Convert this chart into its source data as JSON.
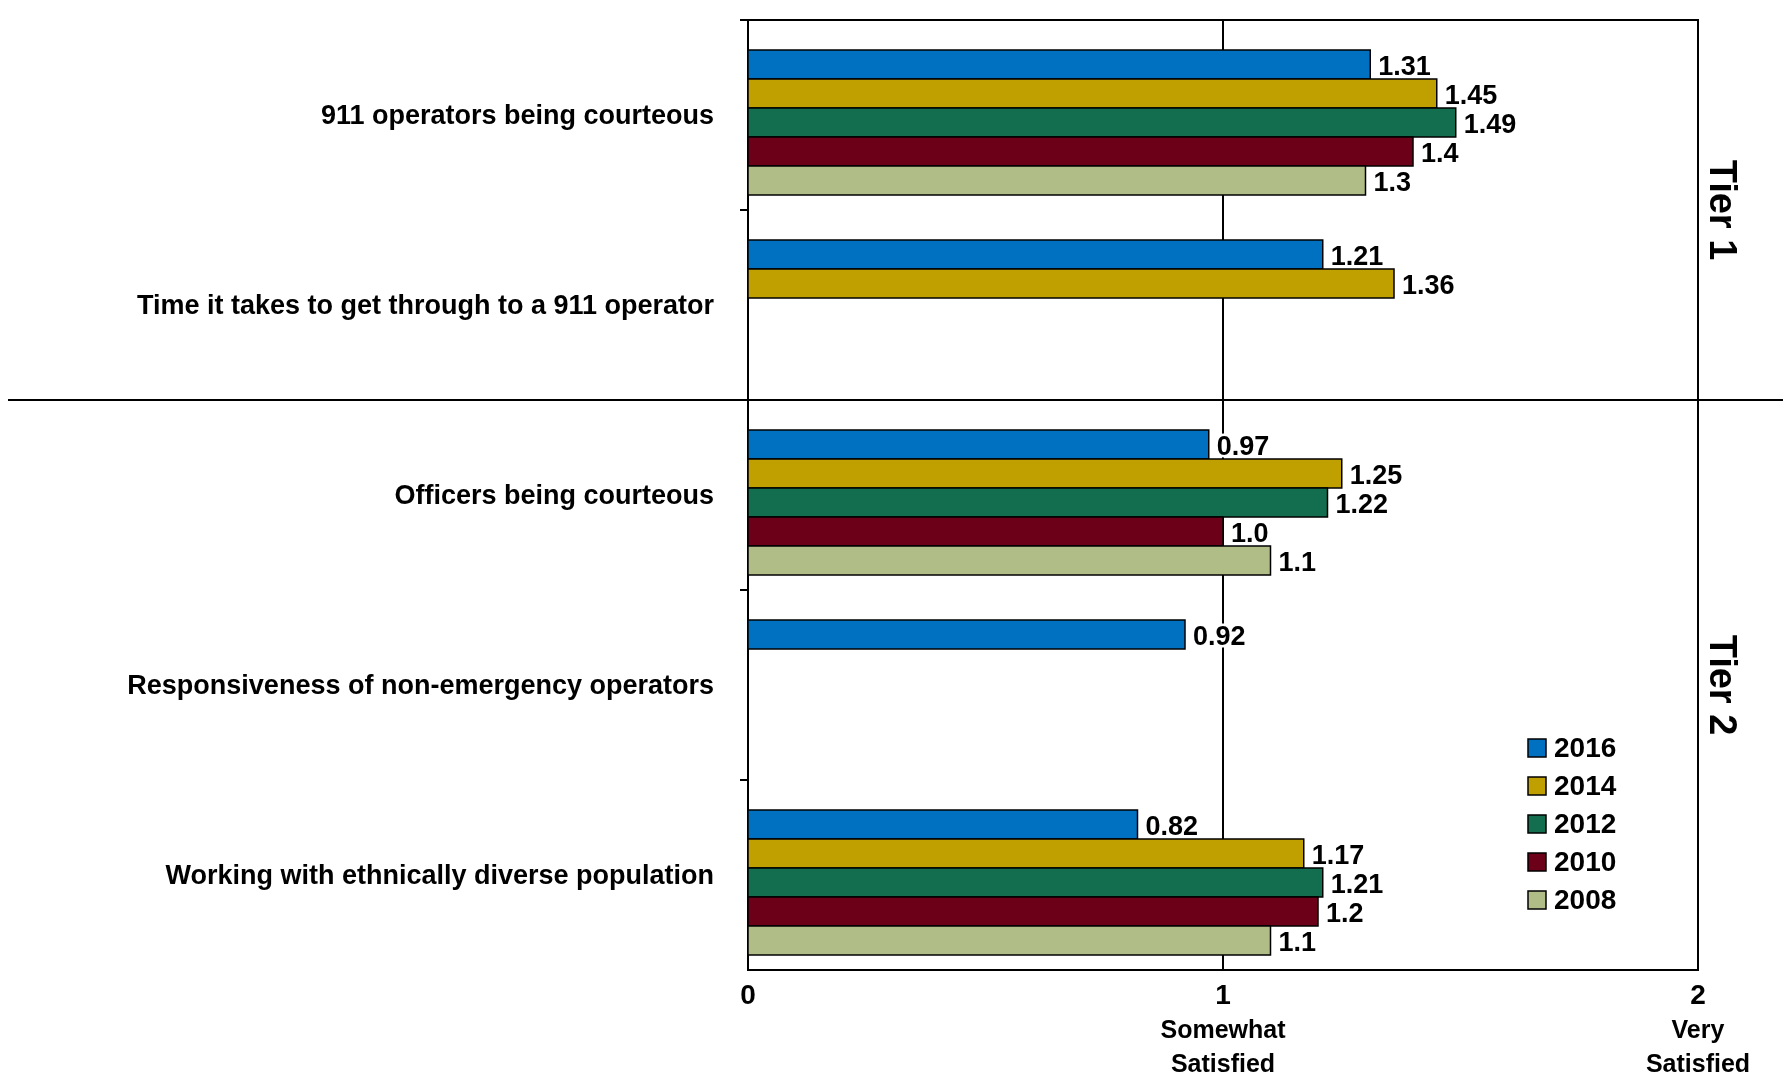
{
  "chart_data": {
    "type": "bar",
    "orientation": "horizontal",
    "categories": [
      "911 operators being courteous",
      "Time it takes to get through to a 911 operator",
      "Officers being courteous",
      "Responsiveness of non-emergency operators",
      "Working with ethnically diverse population"
    ],
    "series": [
      {
        "name": "2016",
        "color": "#0070c0",
        "values": [
          1.31,
          1.21,
          0.97,
          0.92,
          0.82
        ],
        "value_labels": [
          "1.31",
          "1.21",
          "0.97",
          "0.92",
          "0.82"
        ]
      },
      {
        "name": "2014",
        "color": "#c09f00",
        "values": [
          1.45,
          1.36,
          1.25,
          null,
          1.17
        ],
        "value_labels": [
          "1.45",
          "1.36",
          "1.25",
          null,
          "1.17"
        ]
      },
      {
        "name": "2012",
        "color": "#136d4f",
        "values": [
          1.49,
          null,
          1.22,
          null,
          1.21
        ],
        "value_labels": [
          "1.49",
          null,
          "1.22",
          null,
          "1.21"
        ]
      },
      {
        "name": "2010",
        "color": "#6b0018",
        "values": [
          1.4,
          null,
          1.0,
          null,
          1.2
        ],
        "value_labels": [
          "1.4",
          null,
          "1.0",
          null,
          "1.2"
        ]
      },
      {
        "name": "2008",
        "color": "#b0bd87",
        "values": [
          1.3,
          null,
          1.1,
          null,
          1.1
        ],
        "value_labels": [
          "1.3",
          null,
          "1.1",
          null,
          "1.1"
        ]
      }
    ],
    "xlim": [
      0,
      2
    ],
    "xticks": [
      0,
      {
        "value": 1,
        "label": "1\nSomewhat\nSatisfied"
      },
      {
        "value": 2,
        "label": "2\nVery\nSatisfied"
      }
    ],
    "ref_lines": [
      {
        "axis": "x",
        "value": 1,
        "color": "#000000"
      }
    ],
    "legend": "bottom right",
    "annotations": [
      "Tier 1",
      "Tier 2"
    ]
  }
}
